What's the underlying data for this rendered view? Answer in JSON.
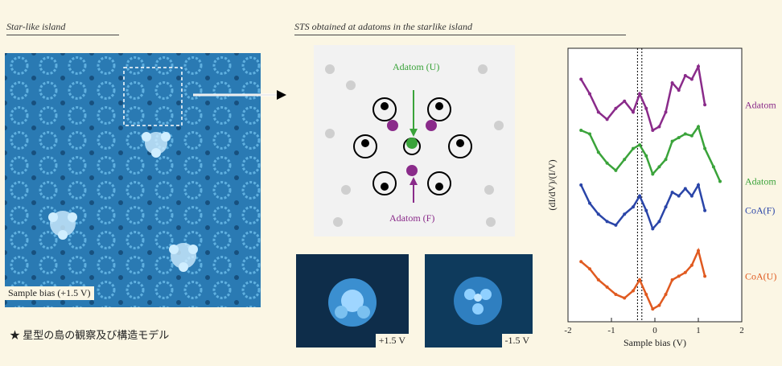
{
  "left_panel": {
    "title": "Star-like island",
    "bias_label": "Sample bias (+1.5 V)"
  },
  "middle_panel": {
    "title": "STS obtained at adatoms in the starlike island",
    "label_adatom_u": "Adatom (U)",
    "label_adatom_f": "Adatom (F)",
    "small_image_1_bias": "+1.5 V",
    "small_image_2_bias": "-1.5 V"
  },
  "caption": {
    "bullet": "★",
    "text": "星型の島の観察及び構造モデル"
  },
  "chart_data": {
    "type": "line",
    "ylabel": "(dI/dV)/(I/V)",
    "xlabel": "Sample bias (V)",
    "xlim": [
      -2,
      2
    ],
    "xticks": [
      "-2",
      "-1",
      "0",
      "1",
      "2"
    ],
    "series": [
      {
        "name": "Adatom (F)",
        "color": "#8a2b8a",
        "x": [
          -1.7,
          -1.5,
          -1.3,
          -1.1,
          -0.9,
          -0.7,
          -0.5,
          -0.35,
          -0.2,
          -0.05,
          0.1,
          0.25,
          0.4,
          0.55,
          0.7,
          0.85,
          1.0,
          1.15
        ],
        "y": [
          0.88,
          0.8,
          0.7,
          0.66,
          0.72,
          0.76,
          0.7,
          0.8,
          0.72,
          0.6,
          0.62,
          0.7,
          0.86,
          0.82,
          0.9,
          0.88,
          0.95,
          0.74
        ]
      },
      {
        "name": "Adatom (U)",
        "color": "#3aa33a",
        "x": [
          -1.7,
          -1.5,
          -1.3,
          -1.1,
          -0.9,
          -0.7,
          -0.5,
          -0.35,
          -0.2,
          -0.05,
          0.1,
          0.25,
          0.4,
          0.55,
          0.7,
          0.85,
          1.0,
          1.15,
          1.35,
          1.5
        ],
        "y": [
          0.6,
          0.58,
          0.48,
          0.42,
          0.38,
          0.44,
          0.5,
          0.52,
          0.46,
          0.36,
          0.4,
          0.44,
          0.54,
          0.56,
          0.58,
          0.57,
          0.62,
          0.5,
          0.4,
          0.32
        ]
      },
      {
        "name": "CoA(F)",
        "color": "#2a45a8",
        "x": [
          -1.7,
          -1.5,
          -1.3,
          -1.1,
          -0.9,
          -0.7,
          -0.5,
          -0.35,
          -0.2,
          -0.05,
          0.1,
          0.25,
          0.4,
          0.55,
          0.7,
          0.85,
          1.0,
          1.15
        ],
        "y": [
          0.3,
          0.2,
          0.14,
          0.1,
          0.08,
          0.14,
          0.18,
          0.24,
          0.16,
          0.06,
          0.1,
          0.18,
          0.26,
          0.24,
          0.28,
          0.24,
          0.3,
          0.16
        ]
      },
      {
        "name": "CoA(U)",
        "color": "#e05a20",
        "x": [
          -1.7,
          -1.5,
          -1.3,
          -1.1,
          -0.9,
          -0.7,
          -0.5,
          -0.35,
          -0.2,
          -0.05,
          0.1,
          0.25,
          0.4,
          0.55,
          0.7,
          0.85,
          1.0,
          1.15
        ],
        "y": [
          -0.12,
          -0.16,
          -0.22,
          -0.26,
          -0.3,
          -0.32,
          -0.28,
          -0.22,
          -0.3,
          -0.38,
          -0.36,
          -0.3,
          -0.22,
          -0.2,
          -0.18,
          -0.14,
          -0.06,
          -0.2
        ]
      }
    ],
    "vlines": [
      -0.4,
      -0.3
    ]
  },
  "colors": {
    "background": "#fbf6e4",
    "stm_blue": "#2c7fb8",
    "adatom_u": "#3aa33a",
    "adatom_f": "#8a2b8a"
  }
}
